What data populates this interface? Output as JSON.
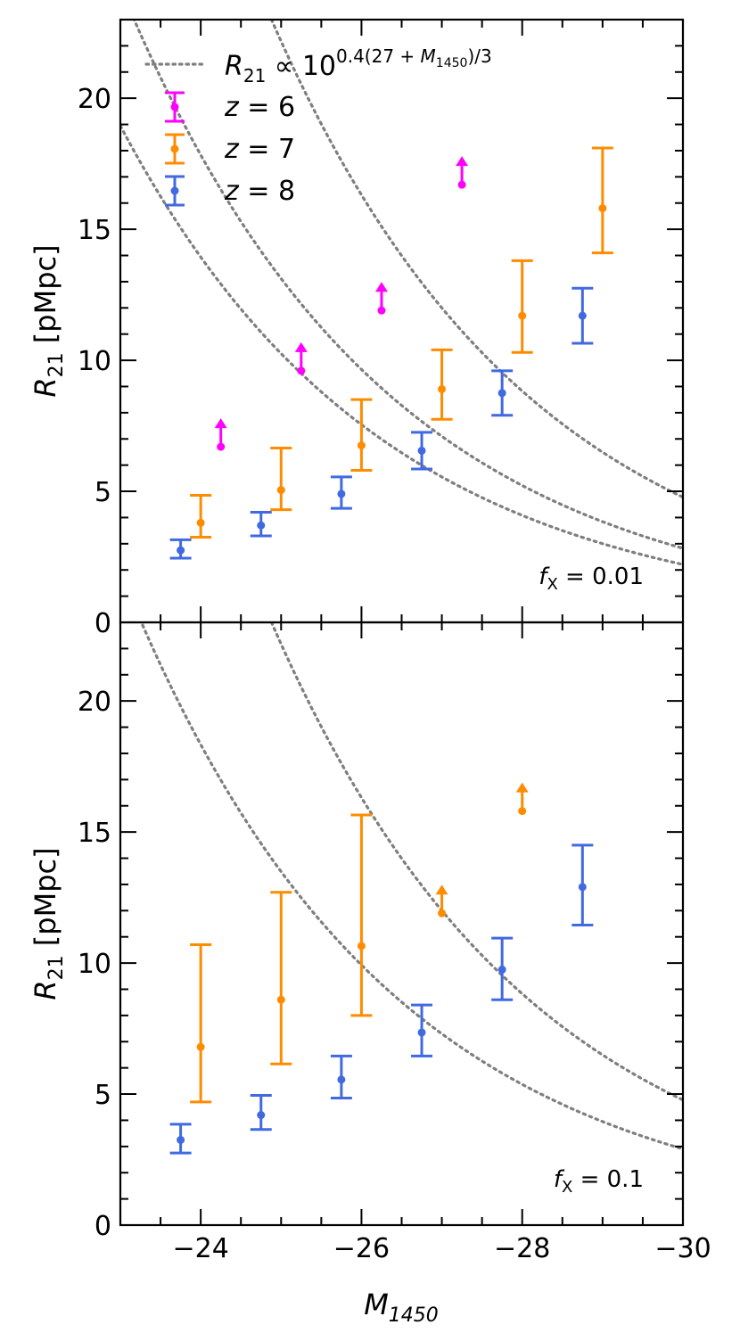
{
  "chart_data": {
    "type": "scatter",
    "xlabel": "M",
    "xlabel_sub": "1450",
    "xlim": [
      -23,
      -30
    ],
    "x_ticks": [
      -24,
      -26,
      -28,
      -30
    ],
    "x_tick_labels": [
      "−24",
      "−26",
      "−28",
      "−30"
    ],
    "legend": {
      "position": "top-left",
      "model_label": "R₂₁ ∝ 10^(0.4(27 + M₁₄₅₀)/3)",
      "model_parts": {
        "r": "R",
        "r_sub": "21",
        "prop": "∝",
        "base": "10",
        "exp1": "0.4(27 + ",
        "exp_m": "M",
        "exp_sub": "1450",
        "exp2": ")/3"
      },
      "entries": [
        {
          "key": "z6",
          "label": "z = 6",
          "z": "z",
          "eq": "= 6",
          "color": "#ff00ff"
        },
        {
          "key": "z7",
          "label": "z = 7",
          "z": "z",
          "eq": "= 7",
          "color": "#ff8c00"
        },
        {
          "key": "z8",
          "label": "z = 8",
          "z": "z",
          "eq": "= 8",
          "color": "#4169e1"
        }
      ]
    },
    "panels": [
      {
        "ylabel": "R",
        "ylabel_sub": "21",
        "ylabel_unit": "[pMpc]",
        "ylim": [
          0,
          23
        ],
        "y_ticks": [
          0,
          5,
          10,
          15,
          20
        ],
        "y_tick_labels": [
          "0",
          "5",
          "10",
          "15",
          "20"
        ],
        "label_main": "f",
        "label_sub": "X",
        "label_eq": "= 0.01",
        "model_curves": [
          {
            "series": "z6",
            "amplitude": 12.0
          },
          {
            "series": "z7",
            "amplitude": 7.1
          },
          {
            "series": "z8",
            "amplitude": 5.55
          }
        ],
        "series": [
          {
            "name": "z = 6",
            "key": "z6",
            "color": "#ff00ff",
            "lower_limit": true,
            "points": [
              {
                "x": -24.25,
                "y": 6.7
              },
              {
                "x": -25.25,
                "y": 9.6
              },
              {
                "x": -26.25,
                "y": 11.9
              },
              {
                "x": -27.25,
                "y": 16.7
              }
            ]
          },
          {
            "name": "z = 7",
            "key": "z7",
            "color": "#ff8c00",
            "lower_limit": false,
            "points": [
              {
                "x": -24.0,
                "y": 3.8,
                "ylo": 3.25,
                "yhi": 4.85
              },
              {
                "x": -25.0,
                "y": 5.05,
                "ylo": 4.3,
                "yhi": 6.65
              },
              {
                "x": -26.0,
                "y": 6.75,
                "ylo": 5.8,
                "yhi": 8.5
              },
              {
                "x": -27.0,
                "y": 8.9,
                "ylo": 7.75,
                "yhi": 10.4
              },
              {
                "x": -28.0,
                "y": 11.7,
                "ylo": 10.3,
                "yhi": 13.8
              },
              {
                "x": -29.0,
                "y": 15.8,
                "ylo": 14.1,
                "yhi": 18.1
              }
            ]
          },
          {
            "name": "z = 8",
            "key": "z8",
            "color": "#4169e1",
            "lower_limit": false,
            "points": [
              {
                "x": -23.75,
                "y": 2.75,
                "ylo": 2.45,
                "yhi": 3.15
              },
              {
                "x": -24.75,
                "y": 3.7,
                "ylo": 3.3,
                "yhi": 4.2
              },
              {
                "x": -25.75,
                "y": 4.9,
                "ylo": 4.35,
                "yhi": 5.55
              },
              {
                "x": -26.75,
                "y": 6.55,
                "ylo": 5.85,
                "yhi": 7.25
              },
              {
                "x": -27.75,
                "y": 8.75,
                "ylo": 7.9,
                "yhi": 9.6
              },
              {
                "x": -28.75,
                "y": 11.7,
                "ylo": 10.65,
                "yhi": 12.75
              }
            ]
          }
        ]
      },
      {
        "ylabel": "R",
        "ylabel_sub": "21",
        "ylabel_unit": "[pMpc]",
        "ylim": [
          0,
          23
        ],
        "y_ticks": [
          0,
          5,
          10,
          15,
          20
        ],
        "y_tick_labels": [
          "0",
          "5",
          "10",
          "15",
          "20"
        ],
        "label_main": "f",
        "label_sub": "X",
        "label_eq": "= 0.1",
        "model_curves": [
          {
            "series": "z7",
            "amplitude": 12.0
          },
          {
            "series": "z8",
            "amplitude": 7.3
          }
        ],
        "series": [
          {
            "name": "z = 7",
            "key": "z7",
            "color": "#ff8c00",
            "lower_limit": false,
            "points": [
              {
                "x": -24.0,
                "y": 6.8,
                "ylo": 4.7,
                "yhi": 10.7
              },
              {
                "x": -25.0,
                "y": 8.6,
                "ylo": 6.15,
                "yhi": 12.7
              },
              {
                "x": -26.0,
                "y": 10.65,
                "ylo": 8.0,
                "yhi": 15.65
              }
            ]
          },
          {
            "name": "z = 7 lower limits",
            "key": "z7",
            "color": "#ff8c00",
            "lower_limit": true,
            "points": [
              {
                "x": -27.0,
                "y": 11.9
              },
              {
                "x": -28.0,
                "y": 15.8
              }
            ]
          },
          {
            "name": "z = 8",
            "key": "z8",
            "color": "#4169e1",
            "lower_limit": false,
            "points": [
              {
                "x": -23.75,
                "y": 3.25,
                "ylo": 2.75,
                "yhi": 3.85
              },
              {
                "x": -24.75,
                "y": 4.2,
                "ylo": 3.65,
                "yhi": 4.95
              },
              {
                "x": -25.75,
                "y": 5.55,
                "ylo": 4.85,
                "yhi": 6.45
              },
              {
                "x": -26.75,
                "y": 7.35,
                "ylo": 6.45,
                "yhi": 8.4
              },
              {
                "x": -27.75,
                "y": 9.75,
                "ylo": 8.6,
                "yhi": 10.95
              },
              {
                "x": -28.75,
                "y": 12.9,
                "ylo": 11.45,
                "yhi": 14.5
              }
            ]
          }
        ]
      }
    ]
  }
}
